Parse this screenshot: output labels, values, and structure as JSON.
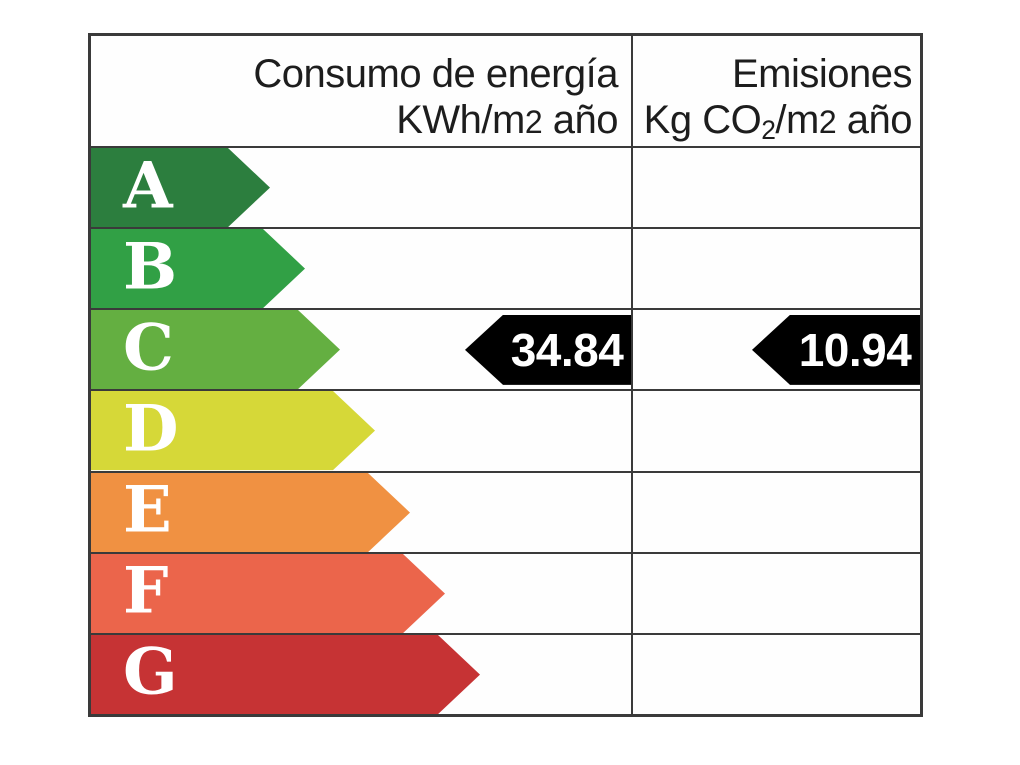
{
  "header": {
    "consumption": {
      "line1": "Consumo de energía",
      "line2": {
        "pre": "KWh/m",
        "exp": "2",
        "post": " año"
      }
    },
    "emissions": {
      "line1": "Emisiones",
      "line2": {
        "pre": "Kg CO",
        "sub": "2",
        "mid": "/m",
        "exp": "2",
        "post": " año"
      }
    }
  },
  "chart_data": {
    "type": "table",
    "title": "Energy efficiency rating scale",
    "columns": [
      "Consumo de energía KWh/m2 año",
      "Emisiones Kg CO2/m2 año"
    ],
    "ratings": [
      {
        "letter": "A",
        "color": "#2c7e3e"
      },
      {
        "letter": "B",
        "color": "#31a045"
      },
      {
        "letter": "C",
        "color": "#64af41"
      },
      {
        "letter": "D",
        "color": "#d6d838"
      },
      {
        "letter": "E",
        "color": "#f09142"
      },
      {
        "letter": "F",
        "color": "#eb654b"
      },
      {
        "letter": "G",
        "color": "#c63334"
      }
    ],
    "indicators": {
      "rating": "C",
      "consumption_value": "34.84",
      "emissions_value": "10.94",
      "arrow_color": "#000000",
      "value_text_color": "#ffffff"
    }
  },
  "colors": {
    "grid": "#3a3a3a",
    "header_text": "#1d1d1d",
    "background": "#ffffff"
  }
}
